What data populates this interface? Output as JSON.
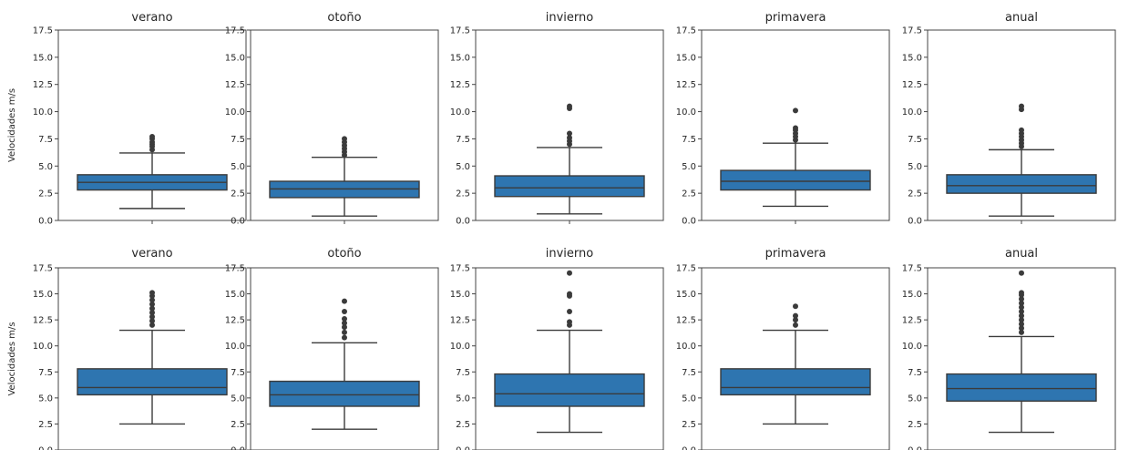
{
  "chart_data": {
    "type": "box",
    "ylabel": "Velocidades m/s",
    "y_ticks": [
      "0.0",
      "2.5",
      "5.0",
      "7.5",
      "10.0",
      "12.5",
      "15.0",
      "17.5"
    ],
    "ylim": [
      0,
      17.5
    ],
    "box_color": "#2e75b0",
    "rows": [
      {
        "panels": [
          {
            "title": "verano",
            "q1": 2.8,
            "median": 3.5,
            "q3": 4.2,
            "whisker_low": 1.1,
            "whisker_high": 6.2,
            "outliers": [
              6.5,
              6.8,
              7.0,
              7.2,
              7.5,
              7.7
            ]
          },
          {
            "title": "otoño",
            "q1": 2.1,
            "median": 2.9,
            "q3": 3.6,
            "whisker_low": 0.4,
            "whisker_high": 5.8,
            "outliers": [
              6.0,
              6.3,
              6.6,
              6.9,
              7.2,
              7.5
            ]
          },
          {
            "title": "invierno",
            "q1": 2.2,
            "median": 3.0,
            "q3": 4.1,
            "whisker_low": 0.6,
            "whisker_high": 6.7,
            "outliers": [
              7.0,
              7.3,
              7.6,
              8.0,
              10.3,
              10.5
            ]
          },
          {
            "title": "primavera",
            "q1": 2.8,
            "median": 3.6,
            "q3": 4.6,
            "whisker_low": 1.3,
            "whisker_high": 7.1,
            "outliers": [
              7.4,
              7.7,
              8.0,
              8.3,
              8.5,
              10.1
            ]
          },
          {
            "title": "anual",
            "q1": 2.5,
            "median": 3.2,
            "q3": 4.2,
            "whisker_low": 0.4,
            "whisker_high": 6.5,
            "outliers": [
              6.8,
              7.1,
              7.4,
              7.7,
              8.0,
              8.3,
              10.2,
              10.5
            ]
          }
        ]
      },
      {
        "panels": [
          {
            "title": "verano",
            "q1": 5.3,
            "median": 6.0,
            "q3": 7.8,
            "whisker_low": 2.5,
            "whisker_high": 11.5,
            "outliers": [
              12.0,
              12.4,
              12.8,
              13.2,
              13.6,
              14.0,
              14.4,
              14.8,
              15.1
            ]
          },
          {
            "title": "otoño",
            "q1": 4.2,
            "median": 5.3,
            "q3": 6.6,
            "whisker_low": 2.0,
            "whisker_high": 10.3,
            "outliers": [
              10.8,
              11.3,
              11.8,
              12.2,
              12.6,
              13.3,
              14.3
            ]
          },
          {
            "title": "invierno",
            "q1": 4.2,
            "median": 5.4,
            "q3": 7.3,
            "whisker_low": 1.7,
            "whisker_high": 11.5,
            "outliers": [
              12.0,
              12.3,
              13.3,
              14.8,
              15.0,
              17.0
            ]
          },
          {
            "title": "primavera",
            "q1": 5.3,
            "median": 6.0,
            "q3": 7.8,
            "whisker_low": 2.5,
            "whisker_high": 11.5,
            "outliers": [
              12.0,
              12.5,
              12.9,
              13.8
            ]
          },
          {
            "title": "anual",
            "q1": 4.7,
            "median": 5.9,
            "q3": 7.3,
            "whisker_low": 1.7,
            "whisker_high": 10.9,
            "outliers": [
              11.3,
              11.7,
              12.1,
              12.5,
              12.9,
              13.3,
              13.7,
              14.1,
              14.5,
              14.9,
              15.1,
              17.0
            ]
          }
        ]
      }
    ]
  }
}
